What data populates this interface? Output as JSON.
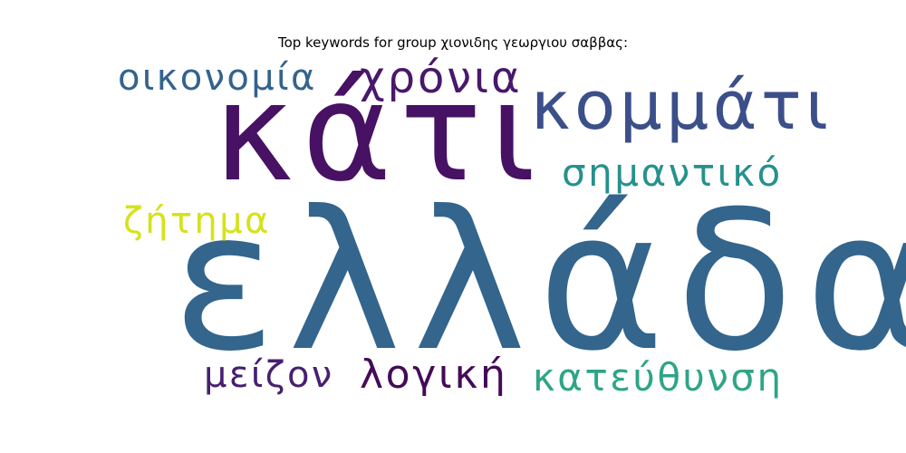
{
  "title": "Top keywords for group χιονιδης γεωργιου σαββας:",
  "words": [
    {
      "text": "κάτι",
      "color": "#471164"
    },
    {
      "text": "ελλάδα",
      "color": "#33658d"
    },
    {
      "text": "κομμάτι",
      "color": "#3b4f8a"
    },
    {
      "text": "χρόνια",
      "color": "#48186a"
    },
    {
      "text": "οικονομία",
      "color": "#33638d"
    },
    {
      "text": "σημαντικό",
      "color": "#26918d"
    },
    {
      "text": "ζήτημα",
      "color": "#d5e21a"
    },
    {
      "text": "μείζον",
      "color": "#481f70"
    },
    {
      "text": "λογική",
      "color": "#440b57"
    },
    {
      "text": "κατεύθυνση",
      "color": "#2ea587"
    }
  ]
}
